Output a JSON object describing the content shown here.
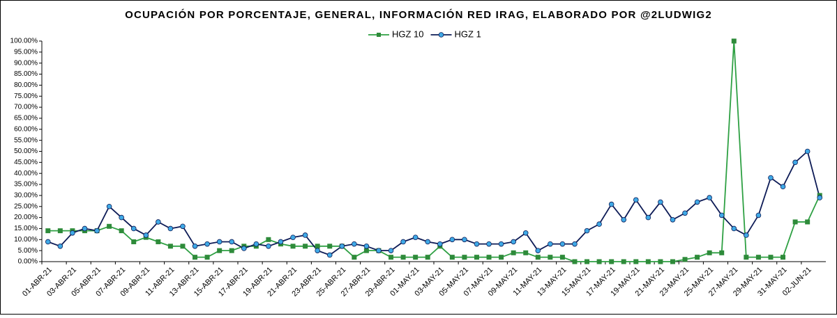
{
  "chart_data": {
    "type": "line",
    "title": "OCUPACIÓN POR PORCENTAJE, GENERAL, INFORMACIÓN RED IRAG, ELABORADO POR @2LUDWIG2",
    "categories": [
      "01-ABR-21",
      null,
      "03-ABR-21",
      null,
      "05-ABR-21",
      null,
      "07-ABR-21",
      null,
      "09-ABR-21",
      null,
      "11-ABR-21",
      null,
      "13-ABR-21",
      null,
      "15-ABR-21",
      null,
      "17-ABR-21",
      null,
      "19-ABR-21",
      null,
      "21-ABR-21",
      null,
      "23-ABR-21",
      null,
      "25-ABR-21",
      null,
      "27-ABR-21",
      null,
      "29-ABR-21",
      null,
      "01-MAY-21",
      null,
      "03-MAY-21",
      null,
      "05-MAY-21",
      null,
      "07-MAY-21",
      null,
      "09-MAY-21",
      null,
      "11-MAY-21",
      null,
      "13-MAY-21",
      null,
      "15-MAY-21",
      null,
      "17-MAY-21",
      null,
      "19-MAY-21",
      null,
      "21-MAY-21",
      null,
      "23-MAY-21",
      null,
      "25-MAY-21",
      null,
      "27-MAY-21",
      null,
      "29-MAY-21",
      null,
      "31-MAY-21",
      null,
      "02-JUN-21",
      null
    ],
    "series": [
      {
        "name": "HGZ 10",
        "color": "#2ea043",
        "marker_color": "#2e8b3a",
        "marker": "square",
        "values": [
          14,
          14,
          14,
          14,
          14,
          16,
          14,
          9,
          11,
          9,
          7,
          7,
          2,
          2,
          5,
          5,
          7,
          7,
          10,
          8,
          7,
          7,
          7,
          7,
          7,
          2,
          5,
          5,
          2,
          2,
          2,
          2,
          7,
          2,
          2,
          2,
          2,
          2,
          4,
          4,
          2,
          2,
          2,
          0,
          0,
          0,
          0,
          0,
          0,
          0,
          0,
          0,
          1,
          2,
          4,
          4,
          100,
          2,
          2,
          2,
          2,
          18,
          18,
          30
        ]
      },
      {
        "name": "HGZ 1",
        "color": "#0d1b56",
        "marker_color": "#3fa9e6",
        "marker": "circle",
        "values": [
          9,
          7,
          13,
          15,
          14,
          25,
          20,
          15,
          12,
          18,
          15,
          16,
          7,
          8,
          9,
          9,
          6,
          8,
          7,
          9,
          11,
          12,
          5,
          3,
          7,
          8,
          7,
          5,
          5,
          9,
          11,
          9,
          8,
          10,
          10,
          8,
          8,
          8,
          9,
          13,
          5,
          8,
          8,
          8,
          14,
          17,
          26,
          19,
          28,
          20,
          27,
          19,
          22,
          27,
          29,
          21,
          15,
          12,
          21,
          38,
          34,
          45,
          50,
          29
        ]
      }
    ],
    "ylim": [
      0,
      100
    ],
    "yticks": [
      {
        "value": 0,
        "label": "0.00%"
      },
      {
        "value": 5,
        "label": "5.00%"
      },
      {
        "value": 10,
        "label": "10.00%"
      },
      {
        "value": 15,
        "label": "15.00%"
      },
      {
        "value": 20,
        "label": "20.00%"
      },
      {
        "value": 25,
        "label": "25.00%"
      },
      {
        "value": 30,
        "label": "30.00%"
      },
      {
        "value": 35,
        "label": "35.00%"
      },
      {
        "value": 40,
        "label": "40.00%"
      },
      {
        "value": 45,
        "label": "45.00%"
      },
      {
        "value": 50,
        "label": "50.00%"
      },
      {
        "value": 55,
        "label": "55.00%"
      },
      {
        "value": 60,
        "label": "60.00%"
      },
      {
        "value": 65,
        "label": "65.00%"
      },
      {
        "value": 70,
        "label": "70.00%"
      },
      {
        "value": 75,
        "label": "75.00%"
      },
      {
        "value": 80,
        "label": "80.00%"
      },
      {
        "value": 85,
        "label": "85.00%"
      },
      {
        "value": 90,
        "label": "90.00%"
      },
      {
        "value": 95,
        "label": "95.00%"
      },
      {
        "value": 100,
        "label": "100.00%"
      }
    ],
    "grid": false,
    "legend": "top"
  }
}
